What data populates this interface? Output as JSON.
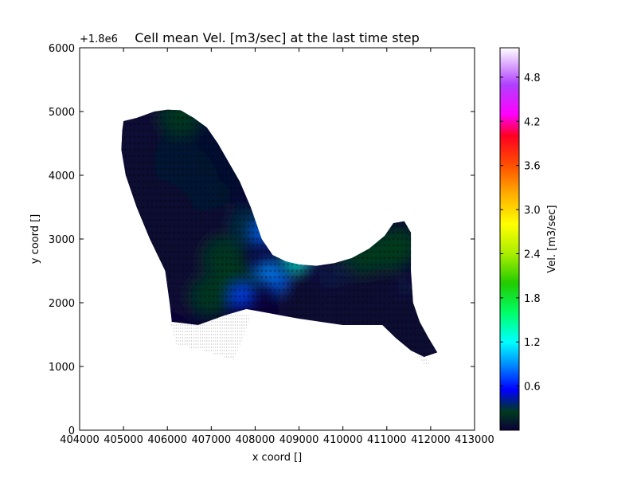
{
  "chart_data": {
    "type": "heatmap",
    "title": "Cell mean Vel. [m3/sec] at the last time step",
    "xlabel": "x coord []",
    "ylabel": "y coord []",
    "y_offset_label": "+1.8e6",
    "xlim": [
      404000,
      413000
    ],
    "ylim": [
      0,
      6000
    ],
    "x_ticks": [
      404000,
      405000,
      406000,
      407000,
      408000,
      409000,
      410000,
      411000,
      412000,
      413000
    ],
    "x_tick_labels": [
      "404000",
      "405000",
      "406000",
      "407000",
      "408000",
      "409000",
      "410000",
      "411000",
      "412000",
      "413000"
    ],
    "y_ticks": [
      0,
      1000,
      2000,
      3000,
      4000,
      5000,
      6000
    ],
    "y_tick_labels": [
      "0",
      "1000",
      "2000",
      "3000",
      "4000",
      "5000",
      "6000"
    ],
    "colorbar": {
      "label": "Vel. [m3/sec]",
      "range": [
        0,
        5.2
      ],
      "ticks": [
        0.6,
        1.2,
        1.8,
        2.4,
        3.0,
        3.6,
        4.2,
        4.8
      ],
      "tick_labels": [
        "0.6",
        "1.2",
        "1.8",
        "2.4",
        "3.0",
        "3.6",
        "4.2",
        "4.8"
      ],
      "colormap_stops": [
        {
          "v": 0.0,
          "color": "#0b0038"
        },
        {
          "v": 0.25,
          "color": "#003a1e"
        },
        {
          "v": 0.55,
          "color": "#0000ff"
        },
        {
          "v": 0.9,
          "color": "#0090ff"
        },
        {
          "v": 1.2,
          "color": "#00ffff"
        },
        {
          "v": 1.6,
          "color": "#00ff66"
        },
        {
          "v": 2.0,
          "color": "#22cc00"
        },
        {
          "v": 2.4,
          "color": "#aaee00"
        },
        {
          "v": 2.8,
          "color": "#ffff00"
        },
        {
          "v": 3.2,
          "color": "#ffb000"
        },
        {
          "v": 3.6,
          "color": "#ff5000"
        },
        {
          "v": 4.0,
          "color": "#ff0020"
        },
        {
          "v": 4.3,
          "color": "#ff00ff"
        },
        {
          "v": 4.7,
          "color": "#b040ff"
        },
        {
          "v": 5.2,
          "color": "#ffffff"
        }
      ]
    },
    "domain_outline": [
      [
        405000,
        4850
      ],
      [
        405300,
        4900
      ],
      [
        405700,
        5000
      ],
      [
        406000,
        5030
      ],
      [
        406300,
        5020
      ],
      [
        406600,
        4900
      ],
      [
        406900,
        4750
      ],
      [
        407150,
        4500
      ],
      [
        407400,
        4200
      ],
      [
        407650,
        3900
      ],
      [
        407900,
        3500
      ],
      [
        408150,
        3000
      ],
      [
        408400,
        2750
      ],
      [
        408700,
        2650
      ],
      [
        409000,
        2600
      ],
      [
        409400,
        2580
      ],
      [
        409800,
        2620
      ],
      [
        410200,
        2700
      ],
      [
        410600,
        2850
      ],
      [
        410950,
        3050
      ],
      [
        411150,
        3250
      ],
      [
        411400,
        3280
      ],
      [
        411550,
        3100
      ],
      [
        411550,
        2500
      ],
      [
        411600,
        2000
      ],
      [
        411750,
        1700
      ],
      [
        411950,
        1450
      ],
      [
        412150,
        1220
      ],
      [
        411850,
        1150
      ],
      [
        411550,
        1250
      ],
      [
        411200,
        1450
      ],
      [
        410900,
        1650
      ],
      [
        410500,
        1650
      ],
      [
        410000,
        1650
      ],
      [
        409500,
        1700
      ],
      [
        409000,
        1750
      ],
      [
        408600,
        1800
      ],
      [
        408200,
        1850
      ],
      [
        407800,
        1900
      ],
      [
        407300,
        1800
      ],
      [
        406700,
        1650
      ],
      [
        406100,
        1700
      ],
      [
        406050,
        2000
      ],
      [
        405950,
        2500
      ],
      [
        405600,
        3000
      ],
      [
        405300,
        3500
      ],
      [
        405050,
        4000
      ],
      [
        404950,
        4400
      ],
      [
        404970,
        4700
      ]
    ],
    "cells": [
      {
        "x": 405600,
        "y": 4300,
        "v": 0.05
      },
      {
        "x": 406100,
        "y": 3800,
        "v": 0.05
      },
      {
        "x": 406600,
        "y": 3300,
        "v": 0.05
      },
      {
        "x": 406700,
        "y": 2500,
        "v": 0.05
      },
      {
        "x": 406800,
        "y": 4200,
        "v": 0.08
      },
      {
        "x": 405600,
        "y": 3200,
        "v": 0.05
      },
      {
        "x": 407300,
        "y": 2700,
        "v": 0.25
      },
      {
        "x": 407600,
        "y": 2300,
        "v": 0.25
      },
      {
        "x": 407900,
        "y": 3200,
        "v": 0.3
      },
      {
        "x": 407700,
        "y": 2100,
        "v": 0.7
      },
      {
        "x": 408200,
        "y": 3100,
        "v": 0.8
      },
      {
        "x": 408500,
        "y": 3300,
        "v": 0.7
      },
      {
        "x": 408300,
        "y": 2500,
        "v": 0.9
      },
      {
        "x": 408600,
        "y": 2300,
        "v": 0.8
      },
      {
        "x": 408900,
        "y": 2700,
        "v": 1.3
      },
      {
        "x": 409200,
        "y": 2500,
        "v": 0.7
      },
      {
        "x": 409700,
        "y": 2400,
        "v": 0.9
      },
      {
        "x": 410000,
        "y": 2500,
        "v": 1.0
      },
      {
        "x": 410300,
        "y": 2800,
        "v": 0.25
      },
      {
        "x": 410700,
        "y": 2400,
        "v": 0.25
      },
      {
        "x": 411000,
        "y": 2800,
        "v": 0.25
      },
      {
        "x": 411300,
        "y": 2900,
        "v": 0.25
      },
      {
        "x": 411480,
        "y": 2200,
        "v": 0.9
      },
      {
        "x": 410500,
        "y": 2000,
        "v": 0.25
      },
      {
        "x": 411000,
        "y": 1800,
        "v": 0.05
      },
      {
        "x": 411700,
        "y": 1400,
        "v": 0.05
      },
      {
        "x": 409000,
        "y": 2100,
        "v": 0.25
      },
      {
        "x": 409600,
        "y": 1950,
        "v": 0.05
      },
      {
        "x": 407000,
        "y": 2100,
        "v": 0.25
      },
      {
        "x": 406300,
        "y": 4950,
        "v": 0.25
      }
    ]
  }
}
